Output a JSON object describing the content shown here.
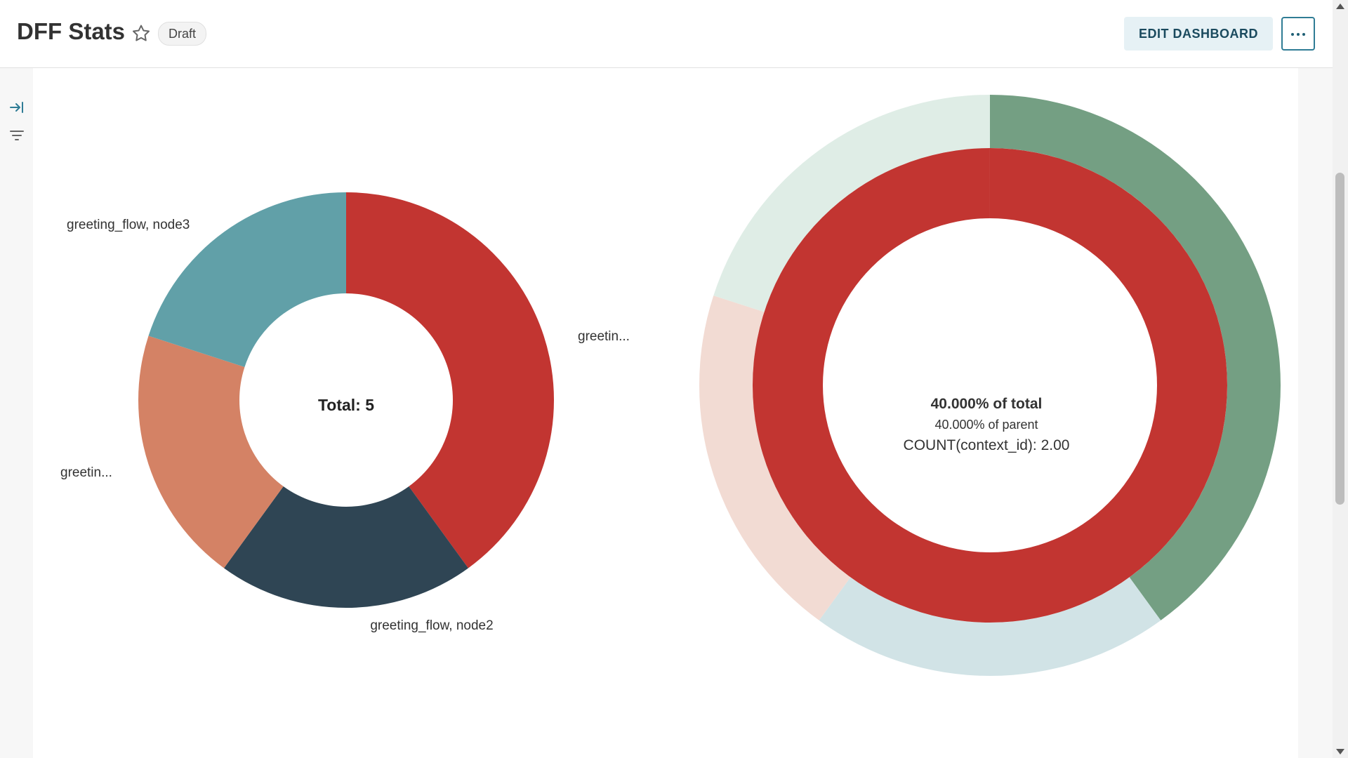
{
  "header": {
    "title": "DFF Stats",
    "badge": "Draft",
    "edit_button": "EDIT DASHBOARD",
    "accent": "#2f7c95"
  },
  "icons": {
    "expand": "expand-sidebar-icon",
    "filter": "filter-icon",
    "star": "star-outline-icon",
    "more": "more-horizontal-icon"
  },
  "chart_data": [
    {
      "type": "pie",
      "variant": "donut",
      "center_label": "Total: 5",
      "slices": [
        {
          "label": "greetin...",
          "value": 2,
          "color": "#c23531"
        },
        {
          "label": "greeting_flow, node2",
          "value": 1,
          "color": "#2f4554"
        },
        {
          "label": "greetin...",
          "value": 1,
          "color": "#d48265"
        },
        {
          "label": "greeting_flow, node3",
          "value": 1,
          "color": "#61a0a8"
        }
      ]
    },
    {
      "type": "pie",
      "variant": "sunburst",
      "tooltip": {
        "line1": "40.000% of total",
        "line2": "40.000% of parent",
        "line3": "COUNT(context_id): 2.00"
      },
      "inner_ring": [
        {
          "value": 5,
          "color": "#c23531"
        }
      ],
      "outer_ring": [
        {
          "value": 2,
          "color": "#749f83"
        },
        {
          "value": 1,
          "color": "#d1e3e6"
        },
        {
          "value": 1,
          "color": "#f2dbd3"
        },
        {
          "value": 1,
          "color": "#dfede6"
        }
      ]
    }
  ]
}
